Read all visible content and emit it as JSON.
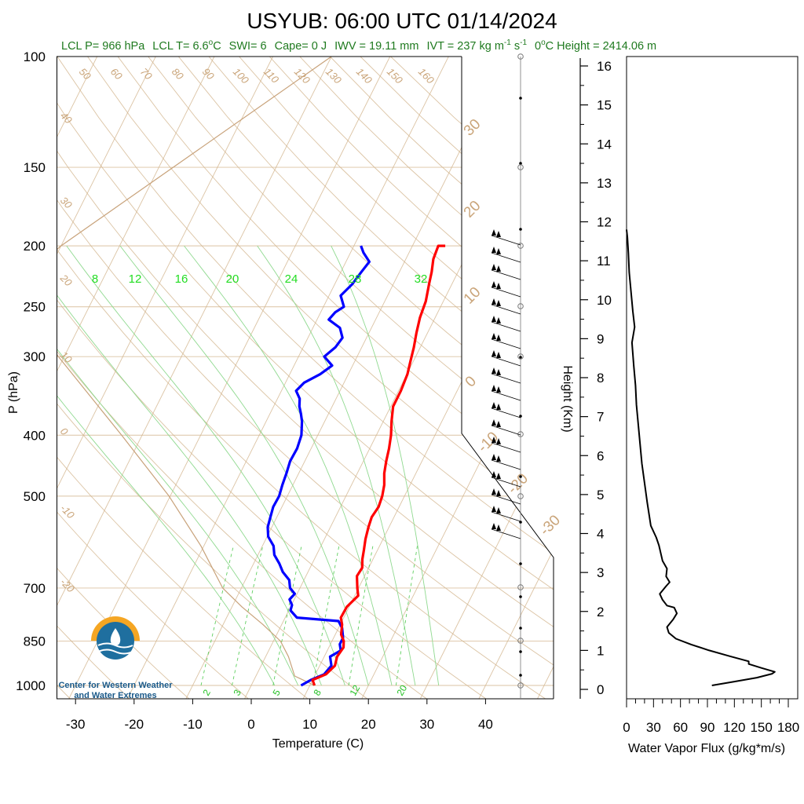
{
  "title": "USYUB: 06:00 UTC 01/14/2024",
  "subtitle": {
    "lcl_p": "LCL P= 966 hPa",
    "lcl_t": "LCL T= 6.6",
    "lcl_t_unit": "C",
    "swi": "SWI= 6",
    "cape": "Cape= 0 J",
    "iwv": "IWV = 19.11 mm",
    "ivt": "IVT = 237 kg m",
    "ivt_unit_1": "-1",
    "ivt_unit_mid": " s",
    "ivt_unit_2": "-1",
    "zero_height_label": "0",
    "zero_height_rest": "C Height = 2414.06 m"
  },
  "skewt": {
    "ylabel": "P (hPa)",
    "xlabel": "Temperature (C)",
    "pressure_ticks": [
      "100",
      "150",
      "200",
      "250",
      "300",
      "400",
      "500",
      "700",
      "850",
      "1000"
    ],
    "temp_ticks": [
      "-30",
      "-20",
      "-10",
      "0",
      "10",
      "20",
      "30",
      "40"
    ],
    "dry_adiabat_labels": [
      "50",
      "60",
      "70",
      "80",
      "90",
      "100",
      "110",
      "120",
      "130",
      "140",
      "150",
      "160"
    ],
    "left_labels": [
      "40",
      "30",
      "20",
      "10",
      "0",
      "-10",
      "-20"
    ],
    "right_labels": [
      "30",
      "20",
      "10",
      "0",
      "-10",
      "-20",
      "-30"
    ],
    "moist_labels": [
      "8",
      "12",
      "16",
      "20",
      "24",
      "28",
      "32"
    ],
    "mixing_labels": [
      "2",
      "3",
      "5",
      "8",
      "12",
      "20"
    ],
    "colors": {
      "temperature": "#ff0000",
      "dewpoint": "#0000ff",
      "parcel": "#c8a27a",
      "dry": "#d2b48c",
      "moist": "#8fd98f",
      "mixing": "#5fcf5f"
    }
  },
  "flux": {
    "ylabel": "Height (Km)",
    "xlabel": "Water Vapor Flux (g/kg*m/s)",
    "height_ticks": [
      "0",
      "1",
      "2",
      "3",
      "4",
      "5",
      "6",
      "7",
      "8",
      "9",
      "10",
      "11",
      "12",
      "13",
      "14",
      "15",
      "16"
    ],
    "flux_ticks": [
      "0",
      "30",
      "60",
      "90",
      "120",
      "150",
      "180"
    ]
  },
  "logo": {
    "line1": "Center for Western Weather",
    "line2": "and Water Extremes"
  },
  "chart_data": [
    {
      "type": "line",
      "title": "USYUB: 06:00 UTC 01/14/2024",
      "xlabel": "Temperature (C)",
      "ylabel": "P (hPa)",
      "xlim": [
        -35,
        50
      ],
      "ylim": [
        1000,
        100
      ],
      "y_scale": "log",
      "series": [
        {
          "points": [
            [
              10.8,
              1000
            ],
            [
              10.0,
              980
            ],
            [
              11.8,
              960
            ],
            [
              12.6,
              930
            ],
            [
              12.2,
              900
            ],
            [
              12.5,
              870
            ],
            [
              12.0,
              850
            ],
            [
              11.0,
              830
            ],
            [
              10.3,
              800
            ],
            [
              9.5,
              780
            ],
            [
              9.6,
              750
            ],
            [
              10.6,
              720
            ],
            [
              9.8,
              700
            ],
            [
              8.7,
              670
            ],
            [
              8.9,
              650
            ],
            [
              8.2,
              630
            ],
            [
              7.7,
              610
            ],
            [
              7.0,
              585
            ],
            [
              6.5,
              560
            ],
            [
              6.2,
              540
            ],
            [
              6.5,
              520
            ],
            [
              6.2,
              500
            ],
            [
              5.6,
              480
            ],
            [
              4.6,
              460
            ],
            [
              3.9,
              440
            ],
            [
              3.3,
              420
            ],
            [
              2.5,
              400
            ],
            [
              1.4,
              380
            ],
            [
              0.4,
              360
            ],
            [
              0.4,
              340
            ],
            [
              0.1,
              320
            ],
            [
              -0.5,
              305
            ],
            [
              -1.1,
              290
            ],
            [
              -1.9,
              275
            ],
            [
              -2.6,
              260
            ],
            [
              -3.0,
              245
            ],
            [
              -3.9,
              230
            ],
            [
              -4.5,
              220
            ],
            [
              -5.3,
              210
            ],
            [
              -5.6,
              200
            ],
            [
              -4.4,
              200
            ]
          ]
        },
        {
          "points": [
            [
              8.5,
              1000
            ],
            [
              9.7,
              980
            ],
            [
              11.5,
              960
            ],
            [
              12.0,
              930
            ],
            [
              11.0,
              900
            ],
            [
              12.3,
              880
            ],
            [
              11.6,
              860
            ],
            [
              11.6,
              840
            ],
            [
              10.6,
              810
            ],
            [
              9.4,
              790
            ],
            [
              2.0,
              780
            ],
            [
              0.3,
              760
            ],
            [
              0.1,
              745
            ],
            [
              -0.8,
              730
            ],
            [
              -0.4,
              715
            ],
            [
              -1.7,
              700
            ],
            [
              -2.5,
              680
            ],
            [
              -4.3,
              660
            ],
            [
              -5.6,
              640
            ],
            [
              -7.2,
              620
            ],
            [
              -8.1,
              600
            ],
            [
              -9.8,
              580
            ],
            [
              -10.7,
              560
            ],
            [
              -11.1,
              540
            ],
            [
              -11.5,
              520
            ],
            [
              -11.4,
              500
            ],
            [
              -11.8,
              480
            ],
            [
              -12.1,
              460
            ],
            [
              -12.5,
              440
            ],
            [
              -12.4,
              420
            ],
            [
              -12.8,
              400
            ],
            [
              -13.9,
              380
            ],
            [
              -14.7,
              370
            ],
            [
              -15.6,
              360
            ],
            [
              -16.2,
              350
            ],
            [
              -17.5,
              340
            ],
            [
              -16.8,
              330
            ],
            [
              -14.8,
              320
            ],
            [
              -13.5,
              310
            ],
            [
              -15.6,
              300
            ],
            [
              -14.5,
              290
            ],
            [
              -14.1,
              280
            ],
            [
              -15.4,
              270
            ],
            [
              -18.0,
              262
            ],
            [
              -17.5,
              255
            ],
            [
              -16.5,
              250
            ],
            [
              -18.0,
              240
            ],
            [
              -17.0,
              230
            ],
            [
              -16.5,
              220
            ],
            [
              -16.0,
              212
            ],
            [
              -17.8,
              205
            ],
            [
              -18.8,
              200
            ]
          ]
        },
        {
          "points": [
            [
              10.8,
              1000
            ],
            [
              6.6,
              966
            ],
            [
              3.9,
              900
            ],
            [
              1.2,
              850
            ],
            [
              -3.2,
              800
            ],
            [
              -8.3,
              750
            ],
            [
              -13.2,
              700
            ],
            [
              -20.5,
              600
            ],
            [
              -30.2,
              500
            ],
            [
              -43.5,
              400
            ],
            [
              -61.0,
              300
            ],
            [
              -71.5,
              250
            ],
            [
              -74.0,
              230
            ],
            [
              -70.0,
              200
            ],
            [
              -40.0,
              100
            ]
          ]
        }
      ]
    },
    {
      "type": "line",
      "xlabel": "Water Vapor Flux (g/kg*m/s)",
      "ylabel": "Height (Km)",
      "xlim": [
        0,
        180
      ],
      "ylim": [
        0,
        16.4
      ],
      "series": [
        {
          "points": [
            [
              95,
              0.1
            ],
            [
              120,
              0.2
            ],
            [
              145,
              0.3
            ],
            [
              162,
              0.4
            ],
            [
              165,
              0.45
            ],
            [
              150,
              0.55
            ],
            [
              136,
              0.65
            ],
            [
              136,
              0.72
            ],
            [
              115,
              0.85
            ],
            [
              92,
              1.0
            ],
            [
              72,
              1.15
            ],
            [
              55,
              1.3
            ],
            [
              47,
              1.45
            ],
            [
              45,
              1.6
            ],
            [
              52,
              1.8
            ],
            [
              56,
              1.95
            ],
            [
              53,
              2.1
            ],
            [
              45,
              2.15
            ],
            [
              40,
              2.3
            ],
            [
              37,
              2.45
            ],
            [
              44,
              2.65
            ],
            [
              48,
              2.75
            ],
            [
              44,
              2.9
            ],
            [
              45,
              3.1
            ],
            [
              40,
              3.3
            ],
            [
              38,
              3.5
            ],
            [
              36,
              3.7
            ],
            [
              33,
              3.9
            ],
            [
              27,
              4.2
            ],
            [
              25,
              4.5
            ],
            [
              23,
              4.8
            ],
            [
              20,
              5.3
            ],
            [
              17,
              5.8
            ],
            [
              15,
              6.3
            ],
            [
              13,
              6.8
            ],
            [
              11,
              7.3
            ],
            [
              10,
              7.8
            ],
            [
              8,
              8.3
            ],
            [
              6,
              8.9
            ],
            [
              9,
              9.3
            ],
            [
              7,
              9.7
            ],
            [
              5,
              10.2
            ],
            [
              3,
              10.7
            ],
            [
              2,
              11.2
            ],
            [
              1,
              11.6
            ],
            [
              0,
              11.8
            ]
          ]
        }
      ]
    }
  ]
}
